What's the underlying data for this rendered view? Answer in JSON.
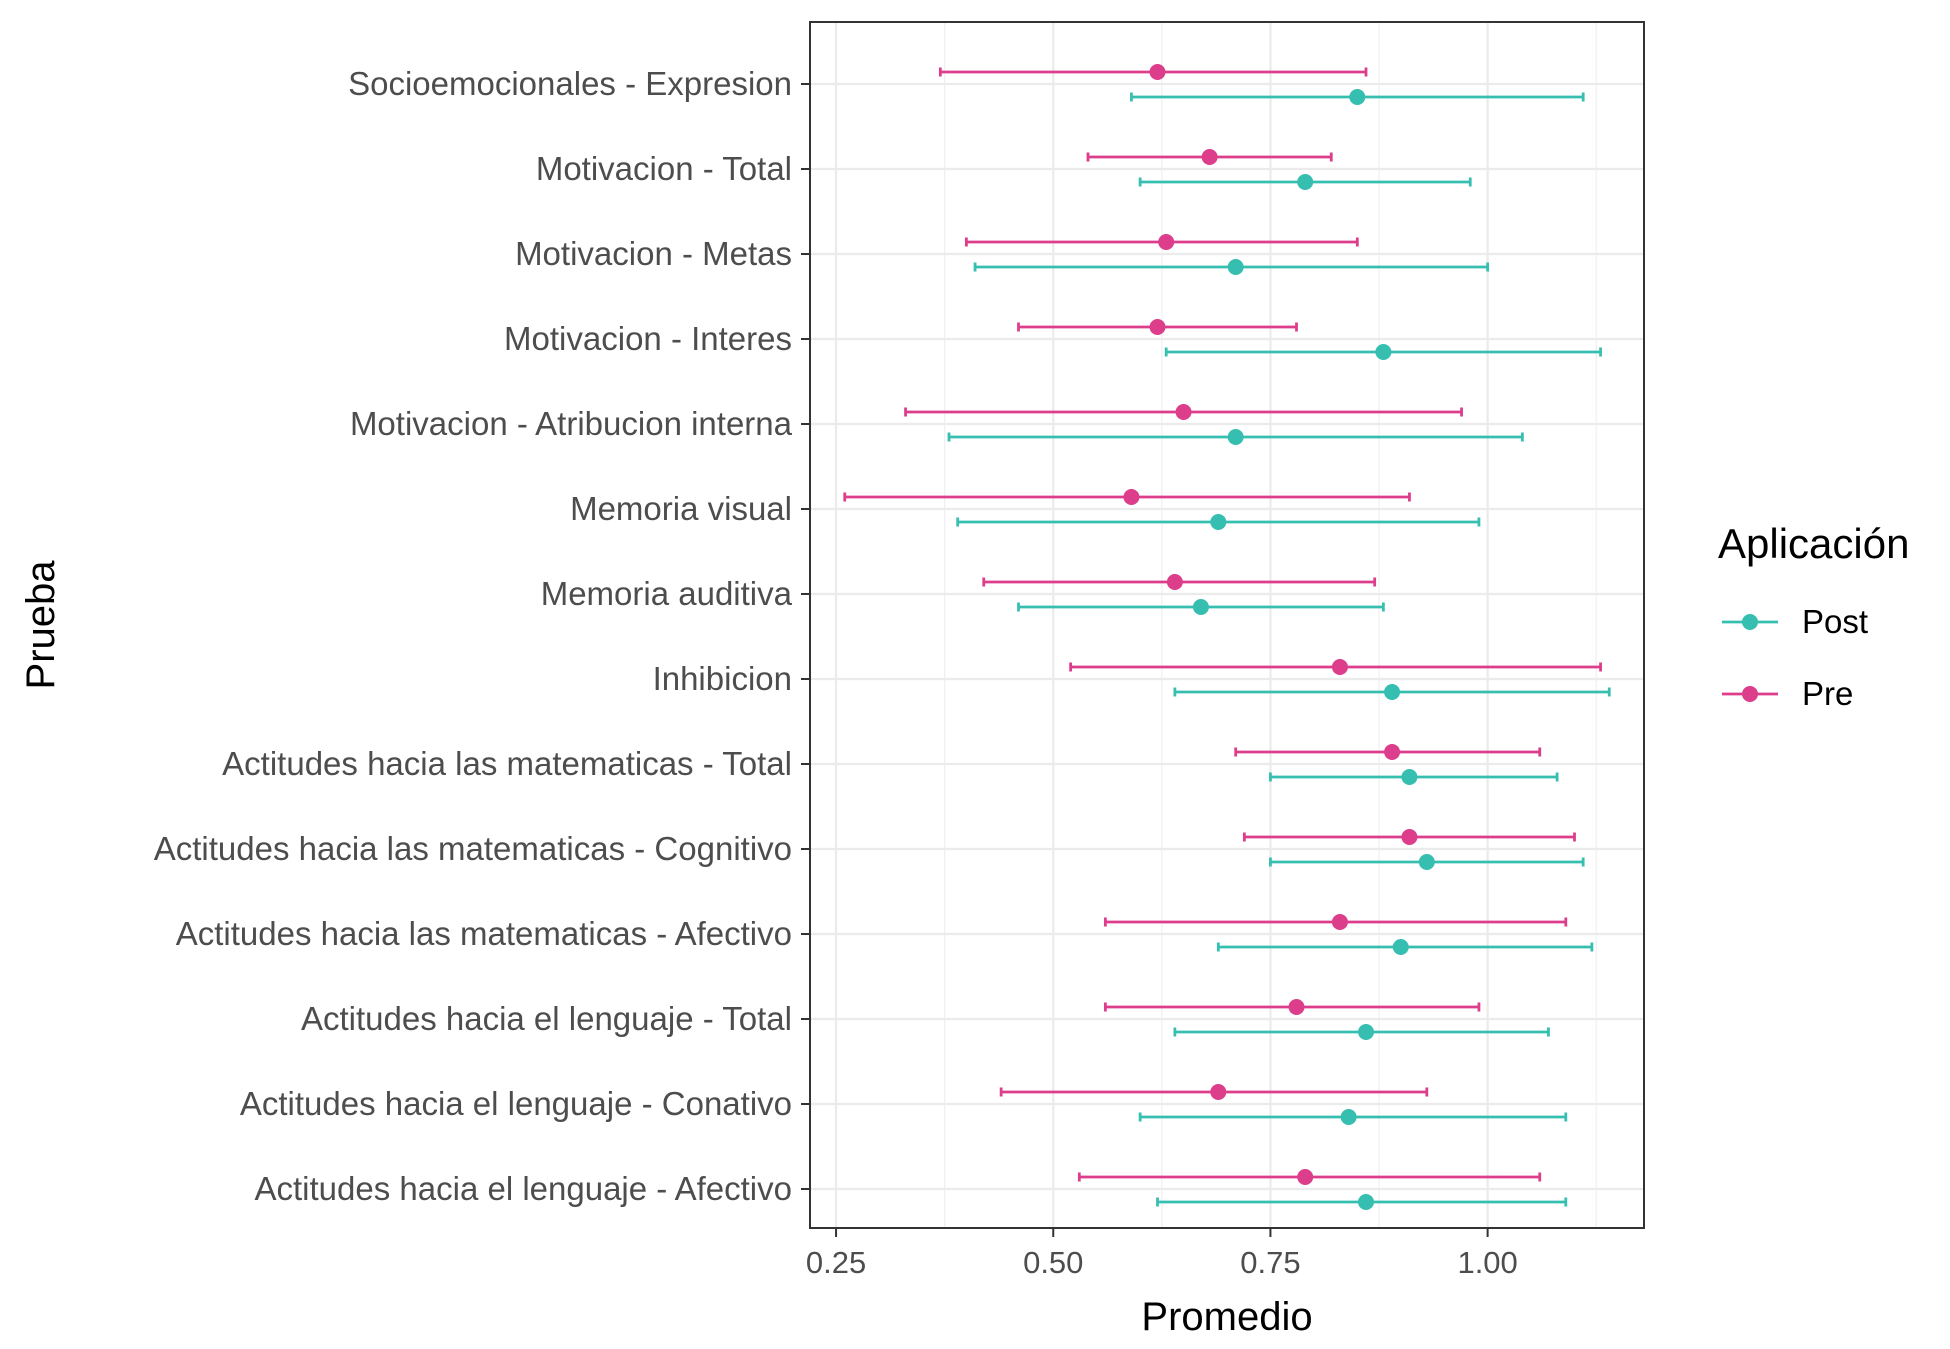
{
  "chart_data": {
    "type": "errorbar",
    "xlabel": "Promedio",
    "ylabel": "Prueba",
    "xlim": [
      0.22,
      1.18
    ],
    "xticks": [
      0.25,
      0.5,
      0.75,
      1.0
    ],
    "xtick_labels": [
      "0.25",
      "0.50",
      "0.75",
      "1.00"
    ],
    "grid": true,
    "legend": {
      "title": "Aplicación",
      "placement": "right",
      "entries": [
        {
          "name": "Post",
          "color": "#36bfb0"
        },
        {
          "name": "Pre",
          "color": "#dc3e8c"
        }
      ]
    },
    "categories": [
      "Socioemocionales - Expresion",
      "Motivacion - Total",
      "Motivacion - Metas",
      "Motivacion - Interes",
      "Motivacion - Atribucion interna",
      "Memoria visual",
      "Memoria auditiva",
      "Inhibicion",
      "Actitudes hacia las matematicas - Total",
      "Actitudes hacia las matematicas - Cognitivo",
      "Actitudes hacia las matematicas - Afectivo",
      "Actitudes hacia el lenguaje - Total",
      "Actitudes hacia el lenguaje - Conativo",
      "Actitudes hacia el lenguaje - Afectivo"
    ],
    "series": [
      {
        "name": "Post",
        "color": "#36bfb0",
        "values": [
          0.85,
          0.79,
          0.71,
          0.88,
          0.71,
          0.69,
          0.67,
          0.89,
          0.91,
          0.93,
          0.9,
          0.86,
          0.84,
          0.86
        ],
        "lower": [
          0.59,
          0.6,
          0.41,
          0.63,
          0.38,
          0.39,
          0.46,
          0.64,
          0.75,
          0.75,
          0.69,
          0.64,
          0.6,
          0.62
        ],
        "upper": [
          1.11,
          0.98,
          1.0,
          1.13,
          1.04,
          0.99,
          0.88,
          1.14,
          1.08,
          1.11,
          1.12,
          1.07,
          1.09,
          1.09
        ]
      },
      {
        "name": "Pre",
        "color": "#dc3e8c",
        "values": [
          0.62,
          0.68,
          0.63,
          0.62,
          0.65,
          0.59,
          0.64,
          0.83,
          0.89,
          0.91,
          0.83,
          0.78,
          0.69,
          0.79
        ],
        "lower": [
          0.37,
          0.54,
          0.4,
          0.46,
          0.33,
          0.26,
          0.42,
          0.52,
          0.71,
          0.72,
          0.56,
          0.56,
          0.44,
          0.53
        ],
        "upper": [
          0.86,
          0.82,
          0.85,
          0.78,
          0.97,
          0.91,
          0.87,
          1.13,
          1.06,
          1.1,
          1.09,
          0.99,
          0.93,
          1.06
        ]
      }
    ]
  }
}
